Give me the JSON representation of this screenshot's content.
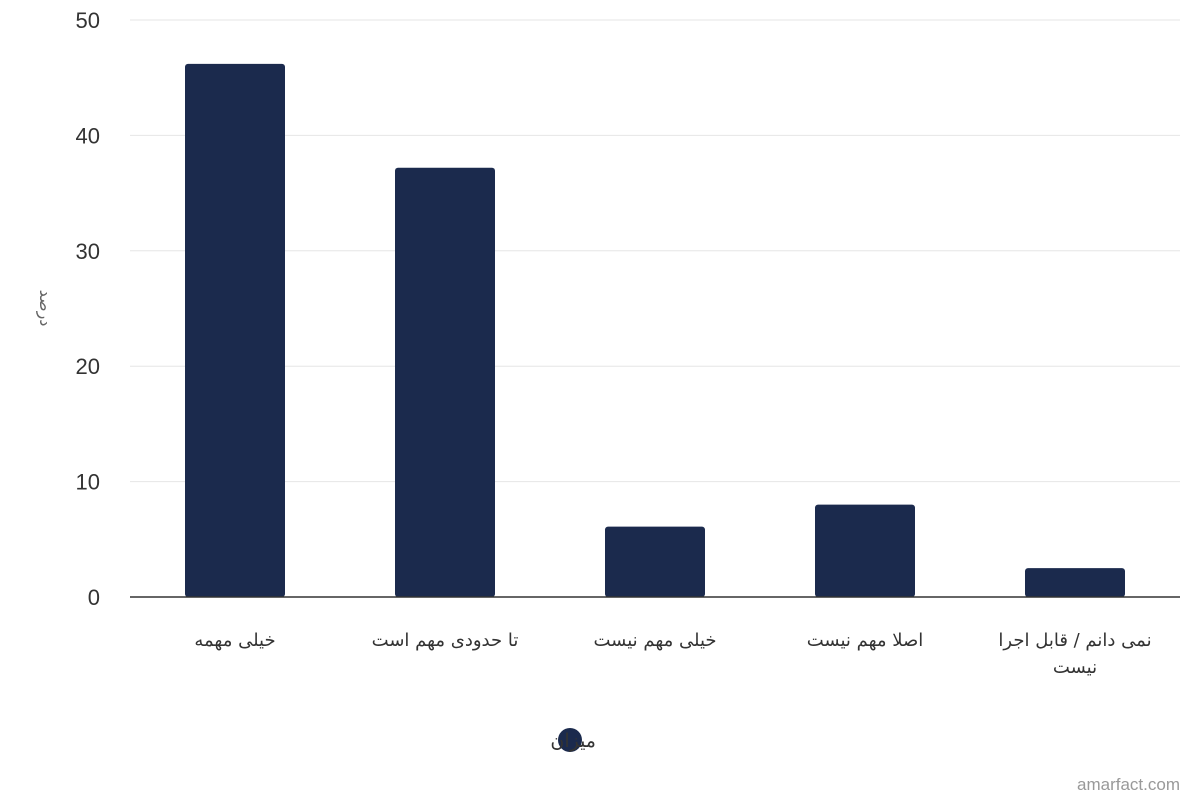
{
  "chart_data": {
    "type": "bar",
    "categories": [
      "خیلی مهمه",
      "تا حدودی مهم است",
      "خیلی مهم نیست",
      "اصلا مهم نیست",
      "نمی دانم / قابل اجرا نیست"
    ],
    "category_lines": [
      [
        "خیلی مهمه"
      ],
      [
        "تا حدودی مهم است"
      ],
      [
        "خیلی مهم نیست"
      ],
      [
        "اصلا مهم نیست"
      ],
      [
        "نمی دانم / قابل اجرا",
        "نیست"
      ]
    ],
    "series": [
      {
        "name": "میزان",
        "color": "#1b2a4d",
        "values": [
          46.2,
          37.2,
          6.1,
          8.0,
          2.5
        ]
      }
    ],
    "ylabel": "درصد",
    "ylim": [
      0,
      50
    ],
    "yticks": [
      0,
      10,
      20,
      30,
      40,
      50
    ],
    "grid": true,
    "legend_position": "bottom-center"
  },
  "credit": "amarfact.com",
  "colors": {
    "bar": "#1b2a4d",
    "grid": "#e6e6e6",
    "axis": "#333333"
  }
}
